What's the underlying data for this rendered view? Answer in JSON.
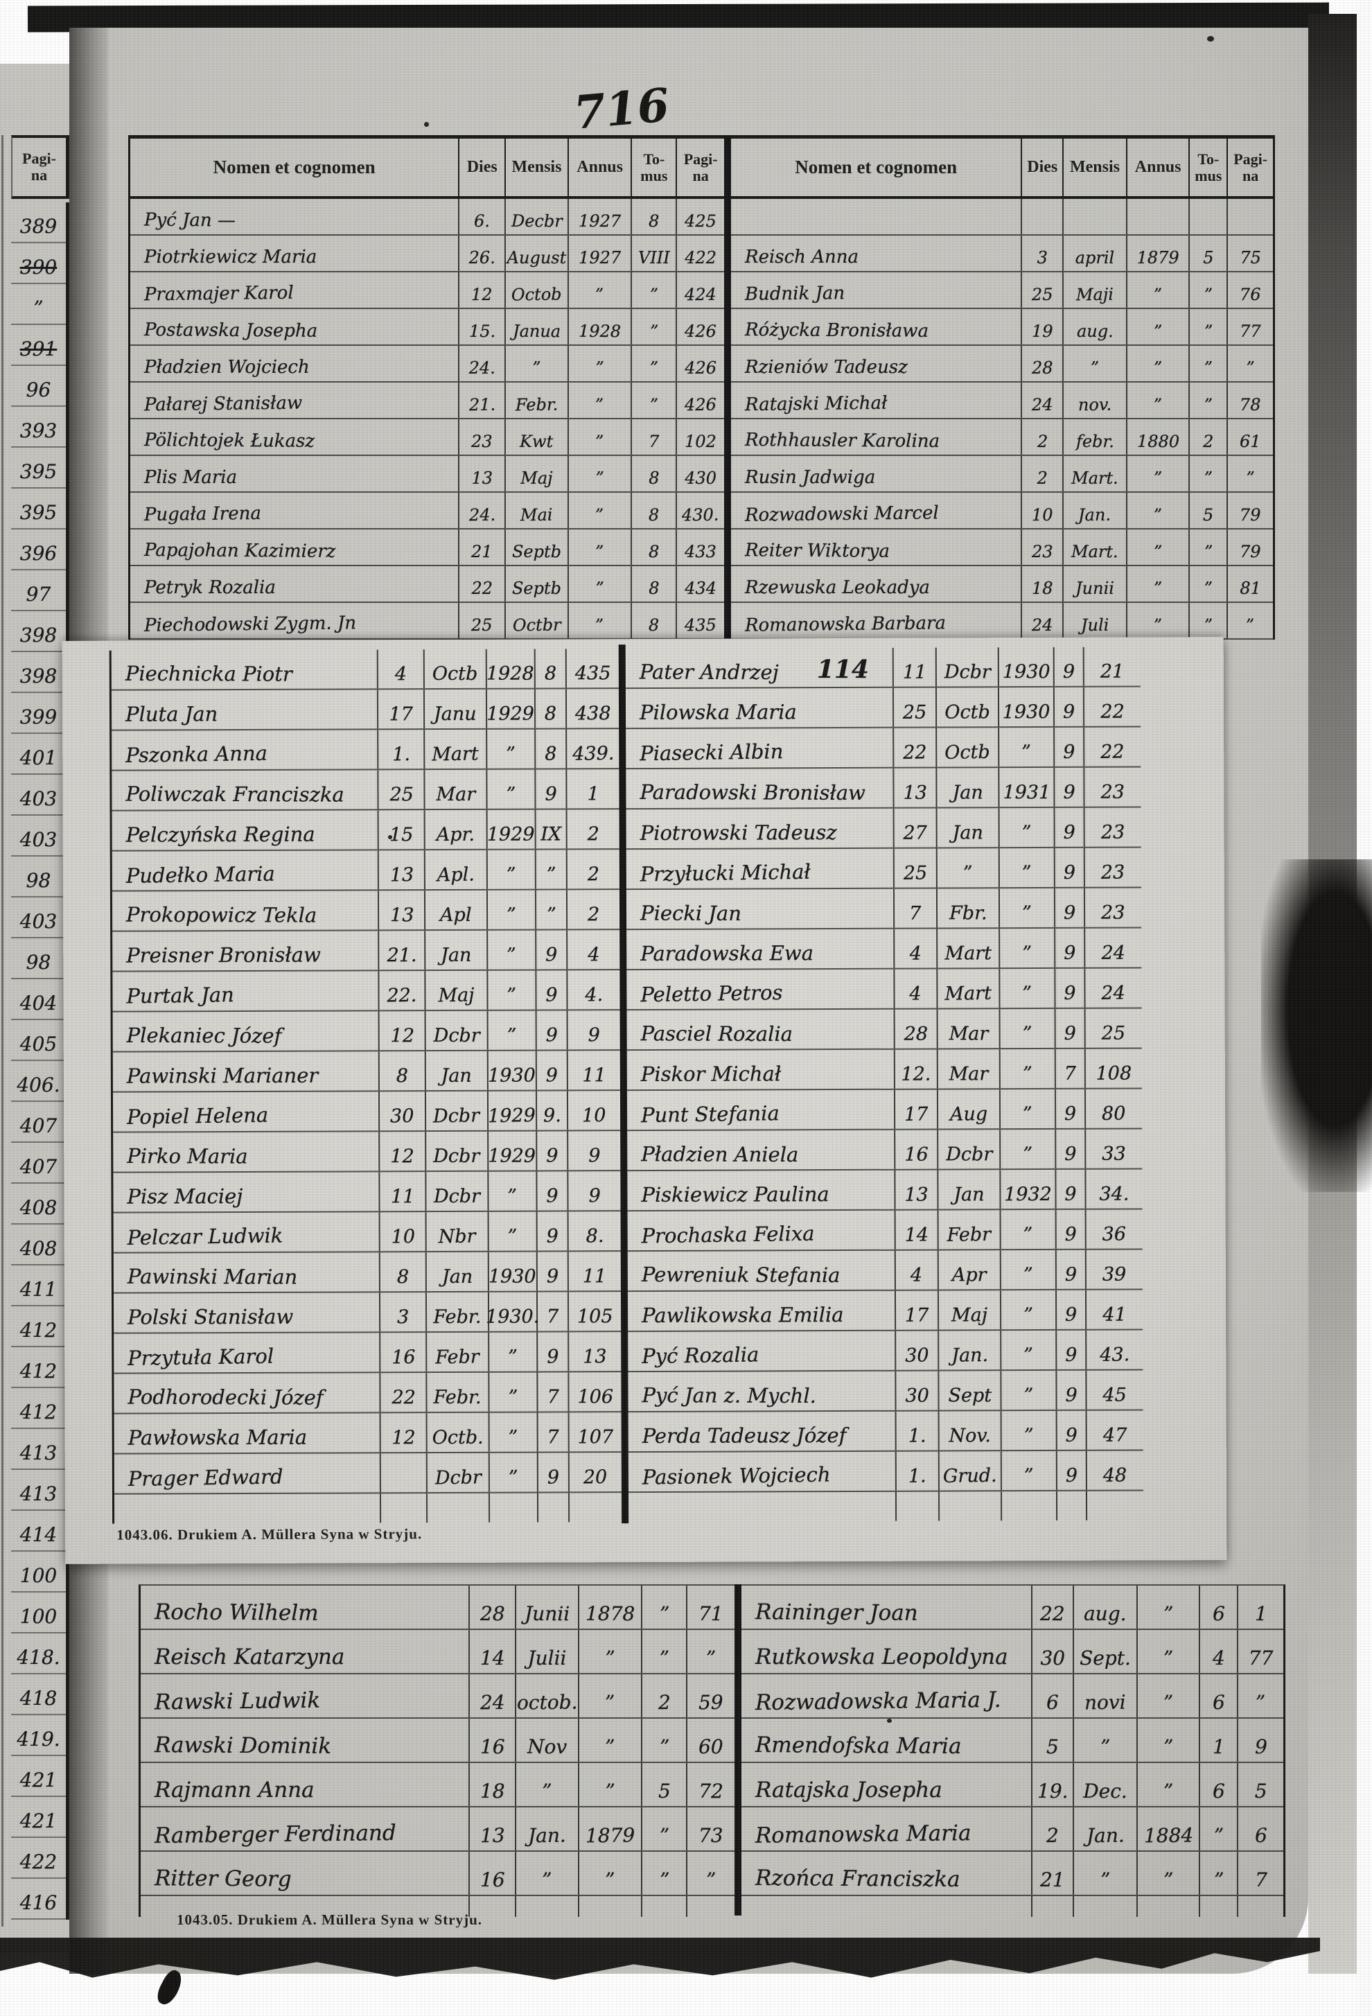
{
  "page": {
    "handwritten_page_number": "716",
    "description_colors": {
      "paper": "#c8c7c2",
      "overlay_paper": "#d7d6d1",
      "ink": "#17171a",
      "photo_edge": "#161614"
    }
  },
  "headers": {
    "name": "Nomen et cognomen",
    "dies": "Dies",
    "mensis": "Mensis",
    "annus": "Annus",
    "tomus_1": "To-",
    "tomus_2": "mus",
    "pagina_1": "Pagi-",
    "pagina_2": "na"
  },
  "footers": {
    "middle": "1043.06.   Drukiem A. Müllera Syna w Stryju.",
    "bottom": "1043.05.   Drukiem A. Müllera Syna w Stryju."
  },
  "margin": {
    "header_top": "Pagi-",
    "header_bottom": "na",
    "values": [
      "389",
      "390",
      "”",
      "391",
      "96",
      "393",
      "395",
      "395",
      "396",
      "97",
      "398",
      "398",
      "399",
      "401",
      "403",
      "403",
      "98",
      "403",
      "98",
      "404",
      "405",
      "406.",
      "407",
      "407",
      "408",
      "408",
      "411",
      "412",
      "412",
      "412",
      "413",
      "413",
      "414",
      "100",
      "100",
      "418.",
      "418",
      "419.",
      "421",
      "421",
      "422",
      "416"
    ],
    "struck_indices": [
      1,
      3
    ]
  },
  "sections": {
    "top_left": {
      "rows": [
        {
          "name": "Pyć Jan —",
          "dies": "6.",
          "mensis": "Decbr",
          "annus": "1927",
          "tomus": "8",
          "pagina": "425"
        },
        {
          "name": "Piotrkiewicz Maria",
          "dies": "26.",
          "mensis": "August",
          "annus": "1927",
          "tomus": "VIII",
          "pagina": "422"
        },
        {
          "name": "Praxmajer Karol",
          "dies": "12",
          "mensis": "Octob",
          "annus": "”",
          "tomus": "”",
          "pagina": "424"
        },
        {
          "name": "Postawska Josepha",
          "dies": "15.",
          "mensis": "Janua",
          "annus": "1928",
          "tomus": "”",
          "pagina": "426"
        },
        {
          "name": "Pładzien Wojciech",
          "dies": "24.",
          "mensis": "”",
          "annus": "”",
          "tomus": "”",
          "pagina": "426"
        },
        {
          "name": "Pałarej Stanisław",
          "dies": "21.",
          "mensis": "Febr.",
          "annus": "”",
          "tomus": "”",
          "pagina": "426"
        },
        {
          "name": "Pölichtojek Łukasz",
          "dies": "23",
          "mensis": "Kwt",
          "annus": "”",
          "tomus": "7",
          "pagina": "102"
        },
        {
          "name": "Plis Maria",
          "dies": "13",
          "mensis": "Maj",
          "annus": "”",
          "tomus": "8",
          "pagina": "430"
        },
        {
          "name": "Pugała Irena",
          "dies": "24.",
          "mensis": "Mai",
          "annus": "”",
          "tomus": "8",
          "pagina": "430."
        },
        {
          "name": "Papajohan Kazimierz",
          "dies": "21",
          "mensis": "Septb",
          "annus": "”",
          "tomus": "8",
          "pagina": "433"
        },
        {
          "name": "Petryk Rozalia",
          "dies": "22",
          "mensis": "Septb",
          "annus": "”",
          "tomus": "8",
          "pagina": "434"
        },
        {
          "name": "Piechodowski Zygm. Jn",
          "dies": "25",
          "mensis": "Octbr",
          "annus": "”",
          "tomus": "8",
          "pagina": "435"
        }
      ]
    },
    "top_right": {
      "rows": [
        {
          "name": "",
          "dies": "",
          "mensis": "",
          "annus": "",
          "tomus": "",
          "pagina": ""
        },
        {
          "name": "Reisch Anna",
          "dies": "3",
          "mensis": "april",
          "annus": "1879",
          "tomus": "5",
          "pagina": "75"
        },
        {
          "name": "Budnik Jan",
          "dies": "25",
          "mensis": "Maji",
          "annus": "”",
          "tomus": "”",
          "pagina": "76"
        },
        {
          "name": "Różycka Bronisława",
          "dies": "19",
          "mensis": "aug.",
          "annus": "”",
          "tomus": "”",
          "pagina": "77"
        },
        {
          "name": "Rzieniów Tadeusz",
          "dies": "28",
          "mensis": "”",
          "annus": "”",
          "tomus": "”",
          "pagina": "”"
        },
        {
          "name": "Ratajski Michał",
          "dies": "24",
          "mensis": "nov.",
          "annus": "”",
          "tomus": "”",
          "pagina": "78"
        },
        {
          "name": "Rothhausler Karolina",
          "dies": "2",
          "mensis": "febr.",
          "annus": "1880",
          "tomus": "2",
          "pagina": "61"
        },
        {
          "name": "Rusin Jadwiga",
          "dies": "2",
          "mensis": "Mart.",
          "annus": "”",
          "tomus": "”",
          "pagina": "”"
        },
        {
          "name": "Rozwadowski Marcel",
          "dies": "10",
          "mensis": "Jan.",
          "annus": "”",
          "tomus": "5",
          "pagina": "79"
        },
        {
          "name": "Reiter Wiktorya",
          "dies": "23",
          "mensis": "Mart.",
          "annus": "”",
          "tomus": "”",
          "pagina": "79"
        },
        {
          "name": "Rzewuska Leokadya",
          "dies": "18",
          "mensis": "Junii",
          "annus": "”",
          "tomus": "”",
          "pagina": "81"
        },
        {
          "name": "Romanowska Barbara",
          "dies": "24",
          "mensis": "Juli",
          "annus": "”",
          "tomus": "”",
          "pagina": "”"
        }
      ]
    },
    "mid_left": {
      "rows": [
        {
          "name": "Piechnicka Piotr",
          "dies": "4",
          "mensis": "Octb",
          "annus": "1928",
          "tomus": "8",
          "pagina": "435"
        },
        {
          "name": "Pluta Jan",
          "dies": "17",
          "mensis": "Janu",
          "annus": "1929",
          "tomus": "8",
          "pagina": "438"
        },
        {
          "name": "Pszonka Anna",
          "dies": "1.",
          "mensis": "Mart",
          "annus": "”",
          "tomus": "8",
          "pagina": "439."
        },
        {
          "name": "Poliwczak Franciszka",
          "dies": "25",
          "mensis": "Mar",
          "annus": "”",
          "tomus": "9",
          "pagina": "1"
        },
        {
          "name": "Pelczyńska Regina",
          "dies": "15",
          "mensis": "Apr.",
          "annus": "1929",
          "tomus": "IX",
          "pagina": "2"
        },
        {
          "name": "Pudełko Maria",
          "dies": "13",
          "mensis": "Apl.",
          "annus": "”",
          "tomus": "”",
          "pagina": "2"
        },
        {
          "name": "Prokopowicz Tekla",
          "dies": "13",
          "mensis": "Apl",
          "annus": "”",
          "tomus": "”",
          "pagina": "2"
        },
        {
          "name": "Preisner Bronisław",
          "dies": "21.",
          "mensis": "Jan",
          "annus": "”",
          "tomus": "9",
          "pagina": "4"
        },
        {
          "name": "Purtak Jan",
          "dies": "22.",
          "mensis": "Maj",
          "annus": "”",
          "tomus": "9",
          "pagina": "4."
        },
        {
          "name": "Plekaniec Józef",
          "dies": "12",
          "mensis": "Dcbr",
          "annus": "”",
          "tomus": "9",
          "pagina": "9"
        },
        {
          "name": "Pawinski Marianer",
          "dies": "8",
          "mensis": "Jan",
          "annus": "1930",
          "tomus": "9",
          "pagina": "11"
        },
        {
          "name": "Popiel Helena",
          "dies": "30",
          "mensis": "Dcbr",
          "annus": "1929",
          "tomus": "9.",
          "pagina": "10"
        },
        {
          "name": "Pirko Maria",
          "dies": "12",
          "mensis": "Dcbr",
          "annus": "1929",
          "tomus": "9",
          "pagina": "9"
        },
        {
          "name": "Pisz Maciej",
          "dies": "11",
          "mensis": "Dcbr",
          "annus": "”",
          "tomus": "9",
          "pagina": "9"
        },
        {
          "name": "Pelczar Ludwik",
          "dies": "10",
          "mensis": "Nbr",
          "annus": "”",
          "tomus": "9",
          "pagina": "8."
        },
        {
          "name": "Pawinski Marian",
          "dies": "8",
          "mensis": "Jan",
          "annus": "1930",
          "tomus": "9",
          "pagina": "11"
        },
        {
          "name": "Polski Stanisław",
          "dies": "3",
          "mensis": "Febr.",
          "annus": "1930.",
          "tomus": "7",
          "pagina": "105"
        },
        {
          "name": "Przytuła Karol",
          "dies": "16",
          "mensis": "Febr",
          "annus": "”",
          "tomus": "9",
          "pagina": "13"
        },
        {
          "name": "Podhorodecki Józef",
          "dies": "22",
          "mensis": "Febr.",
          "annus": "”",
          "tomus": "7",
          "pagina": "106"
        },
        {
          "name": "Pawłowska Maria",
          "dies": "12",
          "mensis": "Octb.",
          "annus": "”",
          "tomus": "7",
          "pagina": "107"
        },
        {
          "name": "Prager Edward",
          "dies": "",
          "mensis": "Dcbr",
          "annus": "”",
          "tomus": "9",
          "pagina": "20"
        }
      ]
    },
    "mid_right": {
      "rows": [
        {
          "name": "Pater Andrzej",
          "note": "114",
          "dies": "11",
          "mensis": "Dcbr",
          "annus": "1930",
          "tomus": "9",
          "pagina": "21"
        },
        {
          "name": "Pilowska Maria",
          "dies": "25",
          "mensis": "Octb",
          "annus": "1930",
          "tomus": "9",
          "pagina": "22"
        },
        {
          "name": "Piasecki Albin",
          "dies": "22",
          "mensis": "Octb",
          "annus": "”",
          "tomus": "9",
          "pagina": "22"
        },
        {
          "name": "Paradowski Bronisław",
          "dies": "13",
          "mensis": "Jan",
          "annus": "1931",
          "tomus": "9",
          "pagina": "23"
        },
        {
          "name": "Piotrowski Tadeusz",
          "dies": "27",
          "mensis": "Jan",
          "annus": "”",
          "tomus": "9",
          "pagina": "23"
        },
        {
          "name": "Przyłucki Michał",
          "dies": "25",
          "mensis": "”",
          "annus": "”",
          "tomus": "9",
          "pagina": "23"
        },
        {
          "name": "Piecki Jan",
          "dies": "7",
          "mensis": "Fbr.",
          "annus": "”",
          "tomus": "9",
          "pagina": "23"
        },
        {
          "name": "Paradowska Ewa",
          "dies": "4",
          "mensis": "Mart",
          "annus": "”",
          "tomus": "9",
          "pagina": "24"
        },
        {
          "name": "Peletto Petros",
          "dies": "4",
          "mensis": "Mart",
          "annus": "”",
          "tomus": "9",
          "pagina": "24"
        },
        {
          "name": "Pasciel Rozalia",
          "dies": "28",
          "mensis": "Mar",
          "annus": "”",
          "tomus": "9",
          "pagina": "25"
        },
        {
          "name": "Piskor Michał",
          "dies": "12.",
          "mensis": "Mar",
          "annus": "”",
          "tomus": "7",
          "pagina": "108"
        },
        {
          "name": "Punt Stefania",
          "dies": "17",
          "mensis": "Aug",
          "annus": "”",
          "tomus": "9",
          "pagina": "80"
        },
        {
          "name": "Pładzien Aniela",
          "dies": "16",
          "mensis": "Dcbr",
          "annus": "”",
          "tomus": "9",
          "pagina": "33"
        },
        {
          "name": "Piskiewicz Paulina",
          "dies": "13",
          "mensis": "Jan",
          "annus": "1932",
          "tomus": "9",
          "pagina": "34."
        },
        {
          "name": "Prochaska Felixa",
          "dies": "14",
          "mensis": "Febr",
          "annus": "”",
          "tomus": "9",
          "pagina": "36"
        },
        {
          "name": "Pewreniuk Stefania",
          "dies": "4",
          "mensis": "Apr",
          "annus": "”",
          "tomus": "9",
          "pagina": "39"
        },
        {
          "name": "Pawlikowska Emilia",
          "dies": "17",
          "mensis": "Maj",
          "annus": "”",
          "tomus": "9",
          "pagina": "41"
        },
        {
          "name": "Pyć Rozalia",
          "dies": "30",
          "mensis": "Jan.",
          "annus": "”",
          "tomus": "9",
          "pagina": "43."
        },
        {
          "name": "Pyć Jan z. Mychl.",
          "dies": "30",
          "mensis": "Sept",
          "annus": "”",
          "tomus": "9",
          "pagina": "45"
        },
        {
          "name": "Perda Tadeusz Józef",
          "dies": "1.",
          "mensis": "Nov.",
          "annus": "”",
          "tomus": "9",
          "pagina": "47"
        },
        {
          "name": "Pasionek Wojciech",
          "dies": "1.",
          "mensis": "Grud.",
          "annus": "”",
          "tomus": "9",
          "pagina": "48"
        }
      ]
    },
    "bottom_left": {
      "rows": [
        {
          "name": "Rocho Wilhelm",
          "dies": "28",
          "mensis": "Junii",
          "annus": "1878",
          "tomus": "”",
          "pagina": "71"
        },
        {
          "name": "Reisch Katarzyna",
          "dies": "14",
          "mensis": "Julii",
          "annus": "”",
          "tomus": "”",
          "pagina": "”"
        },
        {
          "name": "Rawski Ludwik",
          "dies": "24",
          "mensis": "octob.",
          "annus": "”",
          "tomus": "2",
          "pagina": "59"
        },
        {
          "name": "Rawski Dominik",
          "dies": "16",
          "mensis": "Nov",
          "annus": "”",
          "tomus": "”",
          "pagina": "60"
        },
        {
          "name": "Rajmann Anna",
          "dies": "18",
          "mensis": "”",
          "annus": "”",
          "tomus": "5",
          "pagina": "72"
        },
        {
          "name": "Ramberger Ferdinand",
          "dies": "13",
          "mensis": "Jan.",
          "annus": "1879",
          "tomus": "”",
          "pagina": "73"
        },
        {
          "name": "Ritter Georg",
          "dies": "16",
          "mensis": "”",
          "annus": "”",
          "tomus": "”",
          "pagina": "”"
        }
      ]
    },
    "bottom_right": {
      "rows": [
        {
          "name": "Raininger Joan",
          "dies": "22",
          "mensis": "aug.",
          "annus": "”",
          "tomus": "6",
          "pagina": "1"
        },
        {
          "name": "Rutkowska Leopoldyna",
          "dies": "30",
          "mensis": "Sept.",
          "annus": "”",
          "tomus": "4",
          "pagina": "77"
        },
        {
          "name": "Rozwadowska Maria J.",
          "dies": "6",
          "mensis": "novi",
          "annus": "”",
          "tomus": "6",
          "pagina": "”"
        },
        {
          "name": "Rmendofska Maria",
          "dies": "5",
          "mensis": "”",
          "annus": "”",
          "tomus": "1",
          "pagina": "9"
        },
        {
          "name": "Ratajska Josepha",
          "dies": "19.",
          "mensis": "Dec.",
          "annus": "”",
          "tomus": "6",
          "pagina": "5"
        },
        {
          "name": "Romanowska Maria",
          "dies": "2",
          "mensis": "Jan.",
          "annus": "1884",
          "tomus": "”",
          "pagina": "6"
        },
        {
          "name": "Rzońca Franciszka",
          "dies": "21",
          "mensis": "”",
          "annus": "”",
          "tomus": "”",
          "pagina": "7"
        }
      ]
    }
  }
}
